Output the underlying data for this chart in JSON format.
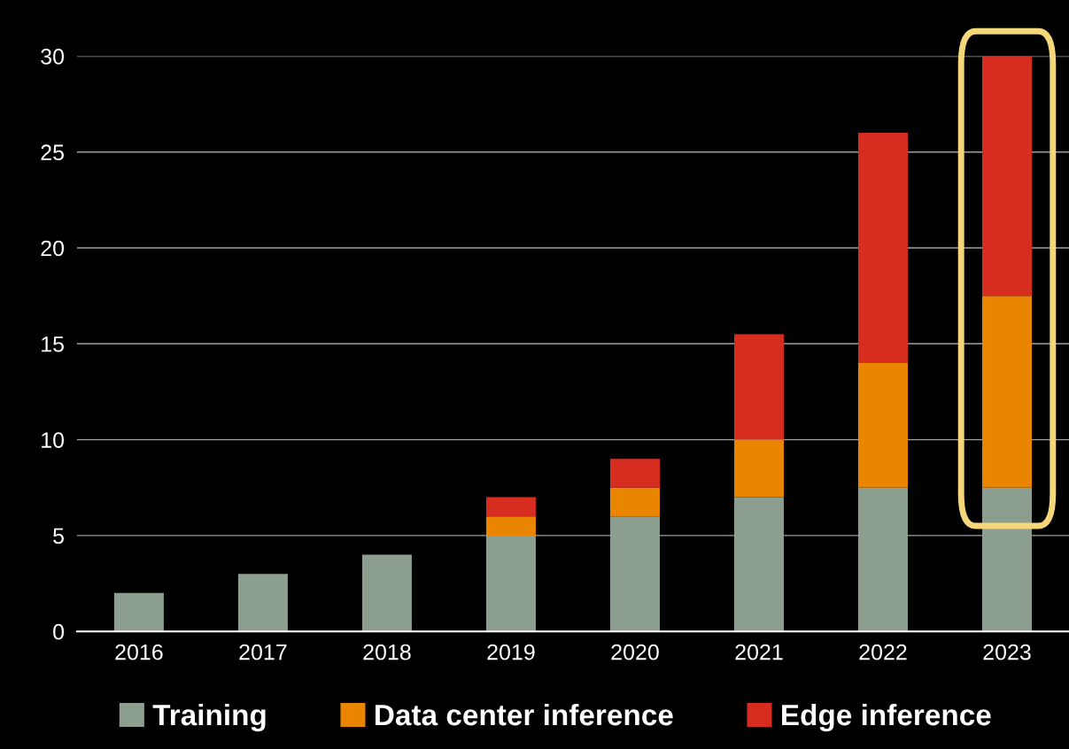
{
  "chart_data": {
    "type": "bar",
    "stacked": true,
    "categories": [
      "2016",
      "2017",
      "2018",
      "2019",
      "2020",
      "2021",
      "2022",
      "2023"
    ],
    "series": [
      {
        "name": "Training",
        "color": "#8c9e8f",
        "values": [
          2,
          3,
          4,
          5,
          6,
          7,
          7.5,
          7.5
        ]
      },
      {
        "name": "Data center inference",
        "color": "#e98500",
        "values": [
          null,
          null,
          null,
          1,
          1.5,
          3,
          6.5,
          10
        ]
      },
      {
        "name": "Edge inference",
        "color": "#d62d20",
        "values": [
          null,
          null,
          null,
          1,
          1.5,
          5.5,
          12,
          12.5
        ]
      }
    ],
    "ylim": [
      0,
      30
    ],
    "yticks": [
      0,
      5,
      10,
      15,
      20,
      25,
      30
    ],
    "grid": "y",
    "legend": "bottom"
  }
}
